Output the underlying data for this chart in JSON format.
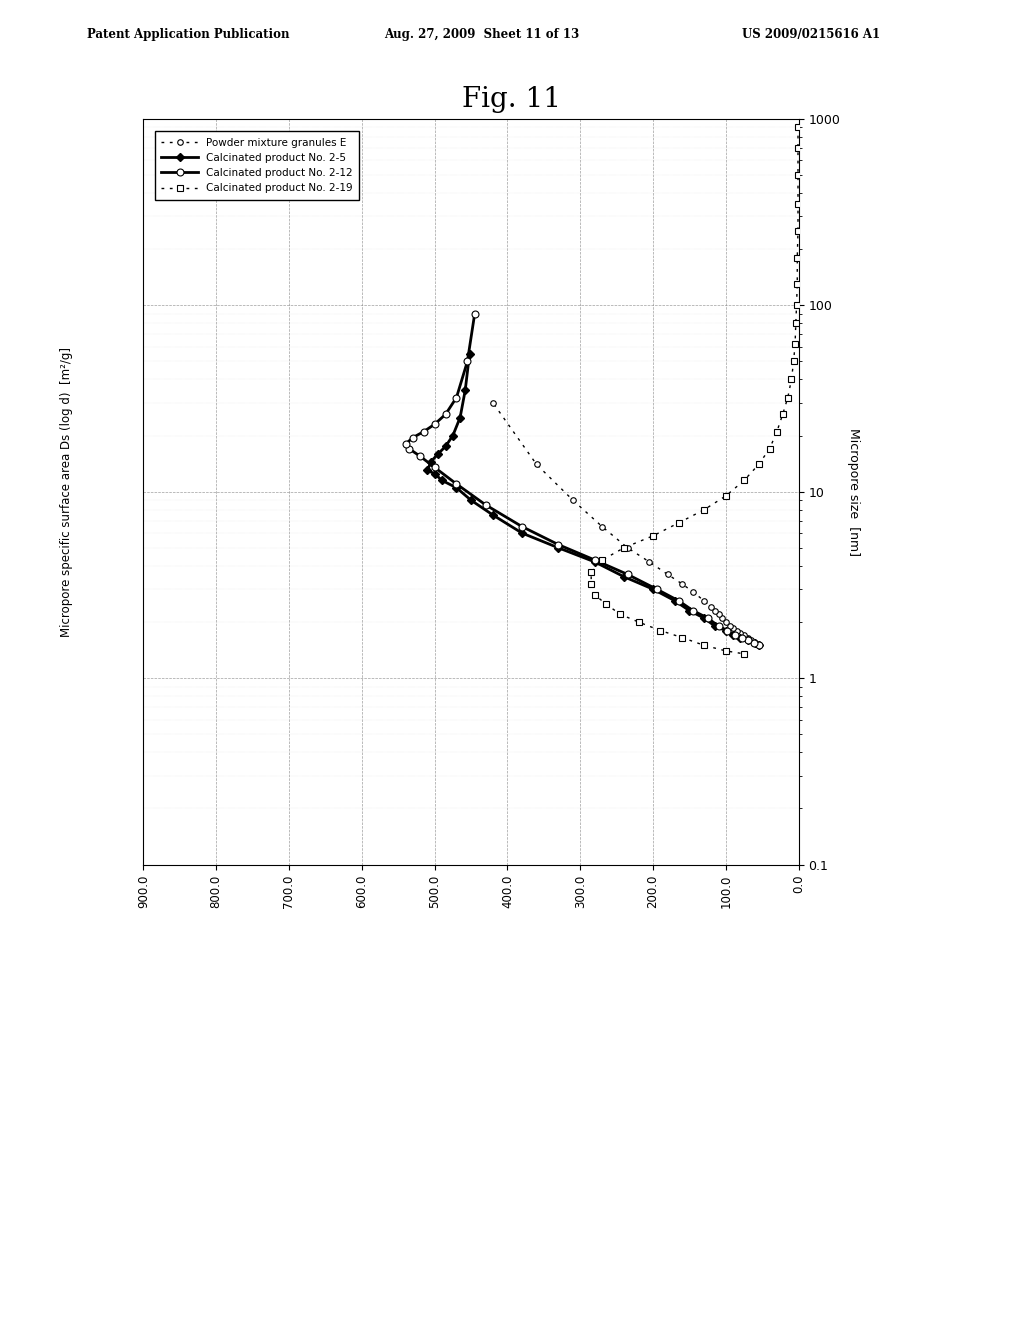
{
  "title": "Fig. 11",
  "header_left": "Patent Application Publication",
  "header_center": "Aug. 27, 2009  Sheet 11 of 13",
  "header_right": "US 2009/0215616 A1",
  "xlabel": "Micropore specific surface area Ds (log d)  [m²/g]",
  "ylabel": "Micropore size  [nm]",
  "legend_labels": [
    "Powder mixture granules E",
    "Calcinated product No. 2-5",
    "Calcinated product No. 2-12",
    "Calcinated product No. 2-19"
  ],
  "background_color": "#ffffff",
  "powder_E_sa": [
    55,
    60,
    65,
    70,
    75,
    80,
    85,
    90,
    95,
    100,
    105,
    110,
    115,
    120,
    130,
    145,
    160,
    180,
    205,
    235,
    270,
    310,
    360,
    420
  ],
  "powder_E_mp": [
    1.5,
    1.55,
    1.6,
    1.65,
    1.7,
    1.75,
    1.8,
    1.85,
    1.9,
    2.0,
    2.1,
    2.2,
    2.3,
    2.4,
    2.6,
    2.9,
    3.2,
    3.6,
    4.2,
    5.0,
    6.5,
    9.0,
    14.0,
    30.0
  ],
  "calc25_sa": [
    55,
    60,
    70,
    80,
    90,
    100,
    115,
    130,
    150,
    170,
    200,
    240,
    280,
    330,
    380,
    420,
    450,
    470,
    490,
    500,
    510,
    505,
    495,
    485,
    475,
    465,
    458,
    452
  ],
  "calc25_mp": [
    1.5,
    1.55,
    1.6,
    1.65,
    1.7,
    1.8,
    1.9,
    2.1,
    2.3,
    2.6,
    3.0,
    3.5,
    4.2,
    5.0,
    6.0,
    7.5,
    9.0,
    10.5,
    11.5,
    12.5,
    13.0,
    14.5,
    16.0,
    17.5,
    20.0,
    25.0,
    35.0,
    55.0
  ],
  "calc212_sa": [
    55,
    62,
    70,
    78,
    88,
    98,
    110,
    125,
    145,
    165,
    195,
    235,
    280,
    330,
    380,
    430,
    470,
    500,
    520,
    535,
    540,
    530,
    515,
    500,
    485,
    470,
    455,
    445
  ],
  "calc212_mp": [
    1.5,
    1.55,
    1.6,
    1.65,
    1.7,
    1.8,
    1.9,
    2.1,
    2.3,
    2.6,
    3.0,
    3.6,
    4.3,
    5.2,
    6.5,
    8.5,
    11.0,
    13.5,
    15.5,
    17.0,
    18.0,
    19.5,
    21.0,
    23.0,
    26.0,
    32.0,
    50.0,
    90.0
  ],
  "calc219_mp": [
    900,
    700,
    500,
    350,
    250,
    180,
    130,
    100,
    80,
    62,
    50,
    40,
    32,
    26,
    21,
    17,
    14,
    11.5,
    9.5,
    8.0,
    6.8,
    5.8,
    5.0,
    4.3,
    3.7,
    3.2,
    2.8,
    2.5,
    2.2,
    2.0,
    1.8,
    1.65,
    1.5,
    1.4,
    1.35
  ],
  "calc219_sa": [
    1,
    1,
    1,
    1,
    1,
    2,
    2,
    3,
    4,
    5,
    7,
    10,
    15,
    22,
    30,
    40,
    55,
    75,
    100,
    130,
    165,
    200,
    240,
    270,
    285,
    285,
    280,
    265,
    245,
    220,
    190,
    160,
    130,
    100,
    75
  ]
}
